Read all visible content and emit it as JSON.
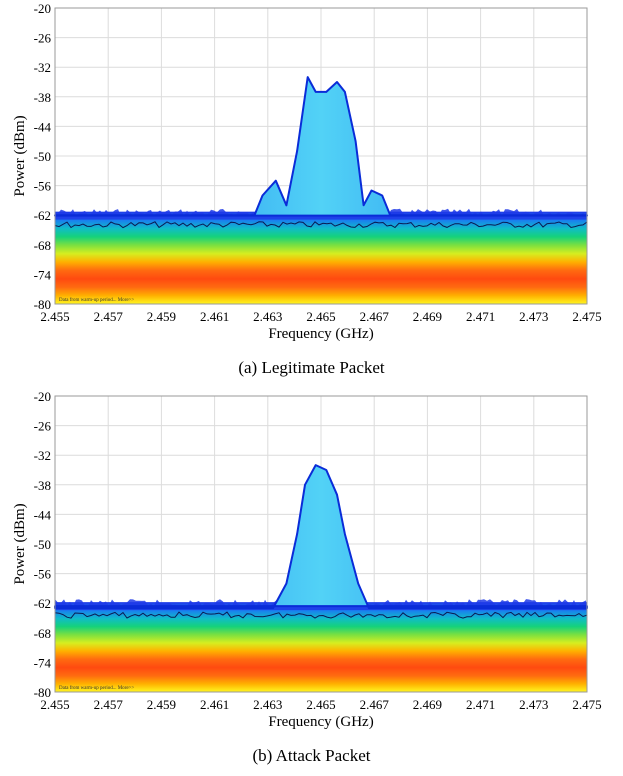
{
  "colors": {
    "noise_floor_bands": [
      "#fff720",
      "#ffb000",
      "#ff6a10",
      "#ff4a10",
      "#ff6a10",
      "#ffb000",
      "#d6ee20",
      "#7ce040",
      "#16d27a",
      "#10bcc8",
      "#1a7ef0",
      "#1f39e8"
    ],
    "signal": [
      "#0a2cd8",
      "#1b6fe8",
      "#33a6f2",
      "#52d2f6"
    ],
    "trace": "#0b1a52"
  },
  "chart_data": [
    {
      "type": "area",
      "caption": "(a) Legitimate Packet",
      "xlabel": "Frequency (GHz)",
      "ylabel": "Power (dBm)",
      "xlim": [
        2.455,
        2.475
      ],
      "ylim": [
        -80,
        -20
      ],
      "x_ticks": [
        "2.455",
        "2.457",
        "2.459",
        "2.461",
        "2.463",
        "2.465",
        "2.467",
        "2.469",
        "2.471",
        "2.473",
        "2.475"
      ],
      "y_ticks": [
        "-20",
        "-26",
        "-32",
        "-38",
        "-44",
        "-50",
        "-56",
        "-62",
        "-68",
        "-74",
        "-80"
      ],
      "annotation": "Data from warm-up period... More>>",
      "noise_floor_dBm": -62.5,
      "series": [
        {
          "x": [
            2.455,
            2.4625,
            2.4628,
            2.4633,
            2.4637,
            2.4641,
            2.4645,
            2.4648,
            2.4652,
            2.4656,
            2.4659,
            2.4663,
            2.4666,
            2.4669,
            2.4673,
            2.4676,
            2.475
          ],
          "y": [
            -62,
            -62,
            -58,
            -55,
            -60,
            -49,
            -34,
            -37,
            -37,
            -35,
            -37,
            -47,
            -60,
            -57,
            -58,
            -62,
            -62
          ]
        }
      ]
    },
    {
      "type": "area",
      "caption": "(b) Attack Packet",
      "xlabel": "Frequency (GHz)",
      "ylabel": "Power (dBm)",
      "xlim": [
        2.455,
        2.475
      ],
      "ylim": [
        -80,
        -20
      ],
      "x_ticks": [
        "2.455",
        "2.457",
        "2.459",
        "2.461",
        "2.463",
        "2.465",
        "2.467",
        "2.469",
        "2.471",
        "2.473",
        "2.475"
      ],
      "y_ticks": [
        "-20",
        "-26",
        "-32",
        "-38",
        "-44",
        "-50",
        "-56",
        "-62",
        "-68",
        "-74",
        "-80"
      ],
      "annotation": "Data from warm-up period... More>>",
      "noise_floor_dBm": -63,
      "series": [
        {
          "x": [
            2.455,
            2.4632,
            2.4637,
            2.4641,
            2.4644,
            2.4648,
            2.4652,
            2.4656,
            2.4659,
            2.4664,
            2.4668,
            2.475
          ],
          "y": [
            -63,
            -63,
            -58,
            -48,
            -38,
            -34,
            -35,
            -40,
            -48,
            -58,
            -63,
            -63
          ]
        }
      ]
    }
  ]
}
